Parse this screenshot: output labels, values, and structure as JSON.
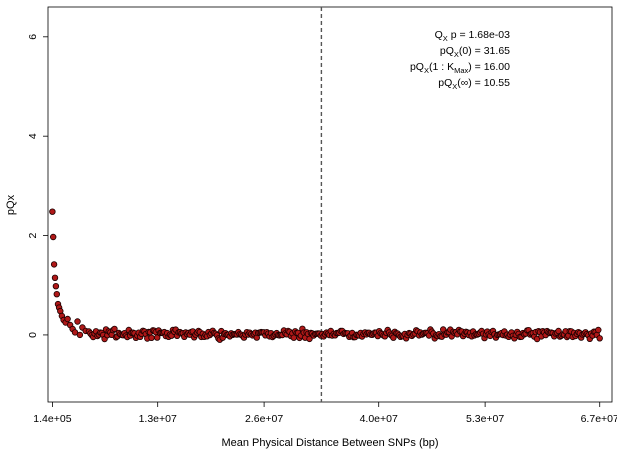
{
  "chart_data": {
    "type": "scatter",
    "xlabel": "Mean Physical Distance Between SNPs (bp)",
    "ylabel": "pQx",
    "xlim": [
      -400000,
      68500000
    ],
    "ylim": [
      -1.35,
      6.6
    ],
    "x_ticks": [
      140000,
      13000000,
      26000000,
      40000000,
      53000000,
      67000000
    ],
    "x_tick_labels": [
      "1.4e+05",
      "1.3e+07",
      "2.6e+07",
      "4.0e+07",
      "5.3e+07",
      "6.7e+07"
    ],
    "y_ticks": [
      0,
      2,
      4,
      6
    ],
    "y_tick_labels": [
      "0",
      "2",
      "4",
      "6"
    ],
    "reference_line": {
      "x": 33000000,
      "style": "dashed",
      "color": "#555555"
    },
    "point_fill": "#b01818",
    "point_edge": "#1a0000",
    "grid": false,
    "annotations": [
      {
        "id": "qx_p",
        "parts": [
          "Q",
          "X",
          " p = 1.68e-03"
        ]
      },
      {
        "id": "pqx0",
        "parts": [
          "pQ",
          "X",
          "(0) = 31.65"
        ]
      },
      {
        "id": "pqx1k",
        "parts": [
          "pQ",
          "X",
          "(1 : K",
          "Max",
          ") = 16.00"
        ]
      },
      {
        "id": "pqxinf",
        "parts": [
          "pQ",
          "X",
          "(∞) = 10.55"
        ]
      }
    ],
    "early_points": [
      [
        140000,
        2.48
      ],
      [
        240000,
        1.97
      ],
      [
        340000,
        1.42
      ],
      [
        450000,
        1.15
      ],
      [
        560000,
        0.98
      ],
      [
        680000,
        0.82
      ],
      [
        820000,
        0.62
      ],
      [
        950000,
        0.55
      ],
      [
        1100000,
        0.48
      ],
      [
        1300000,
        0.38
      ],
      [
        1500000,
        0.3
      ],
      [
        1750000,
        0.25
      ],
      [
        2000000,
        0.32
      ],
      [
        2300000,
        0.2
      ],
      [
        2600000,
        0.12
      ],
      [
        2900000,
        0.05
      ],
      [
        3200000,
        0.27
      ],
      [
        3500000,
        0.0
      ],
      [
        3800000,
        0.15
      ],
      [
        4200000,
        0.08
      ]
    ],
    "tail_seed": 20240611,
    "tail_start": 4600000,
    "tail_end": 67000000,
    "tail_count": 360,
    "tail_mean": 0.02,
    "tail_spread": 0.09
  }
}
